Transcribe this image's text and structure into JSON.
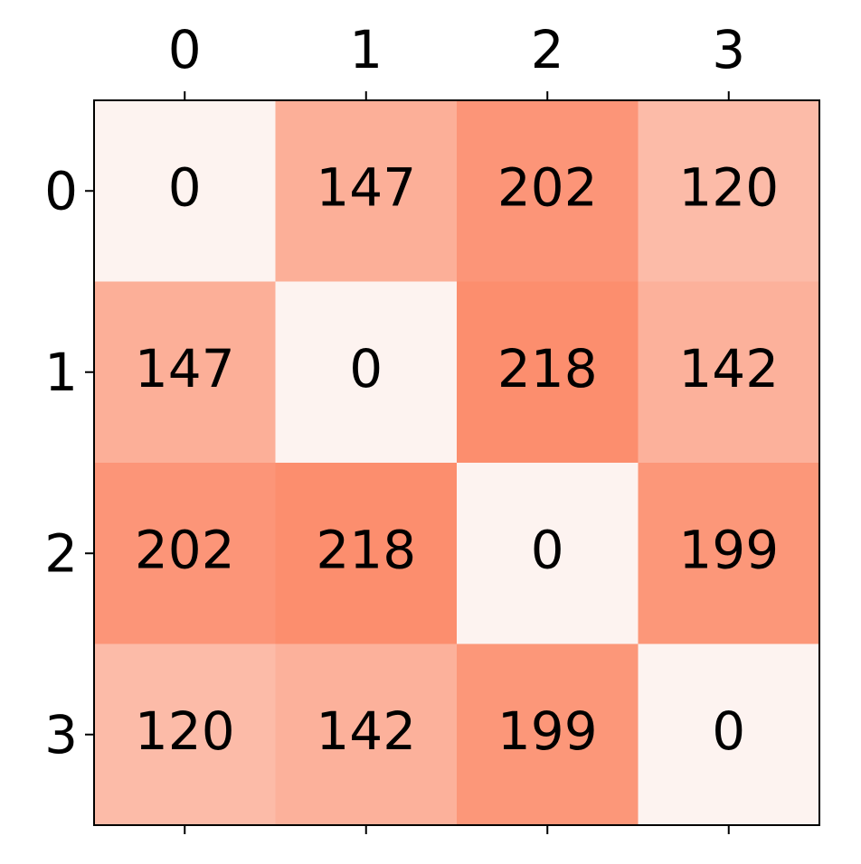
{
  "chart_data": {
    "type": "heatmap",
    "x_categories": [
      "0",
      "1",
      "2",
      "3"
    ],
    "y_categories": [
      "0",
      "1",
      "2",
      "3"
    ],
    "values": [
      [
        0,
        147,
        202,
        120
      ],
      [
        147,
        0,
        218,
        142
      ],
      [
        202,
        218,
        0,
        199
      ],
      [
        120,
        142,
        199,
        0
      ]
    ],
    "color_low": "#fdf3f0",
    "color_high": "#fc8e6e",
    "x_axis_position": "top"
  }
}
